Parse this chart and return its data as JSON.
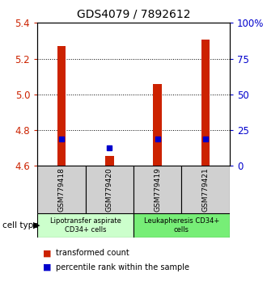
{
  "title": "GDS4079 / 7892612",
  "samples": [
    "GSM779418",
    "GSM779420",
    "GSM779419",
    "GSM779421"
  ],
  "transformed_counts": [
    5.27,
    4.655,
    5.06,
    5.305
  ],
  "percentile_ranks": [
    18.75,
    12.5,
    18.75,
    18.75
  ],
  "ylim": [
    4.6,
    5.4
  ],
  "ylim_right": [
    0,
    100
  ],
  "yticks_left": [
    4.6,
    4.8,
    5.0,
    5.2,
    5.4
  ],
  "yticks_right_vals": [
    0,
    25,
    50,
    75,
    100
  ],
  "yticks_right_labels": [
    "0",
    "25",
    "50",
    "75",
    "100%"
  ],
  "grid_yticks": [
    4.8,
    5.0,
    5.2
  ],
  "cell_type_labels": [
    "Lipotransfer aspirate\nCD34+ cells",
    "Leukapheresis CD34+\ncells"
  ],
  "cell_type_colors": [
    "#ccffcc",
    "#77ee77"
  ],
  "group_bg_color": "#d0d0d0",
  "bar_color_red": "#cc2200",
  "bar_color_blue": "#0000cc",
  "left_tick_color": "#cc2200",
  "right_tick_color": "#0000cc",
  "bar_width": 0.18
}
